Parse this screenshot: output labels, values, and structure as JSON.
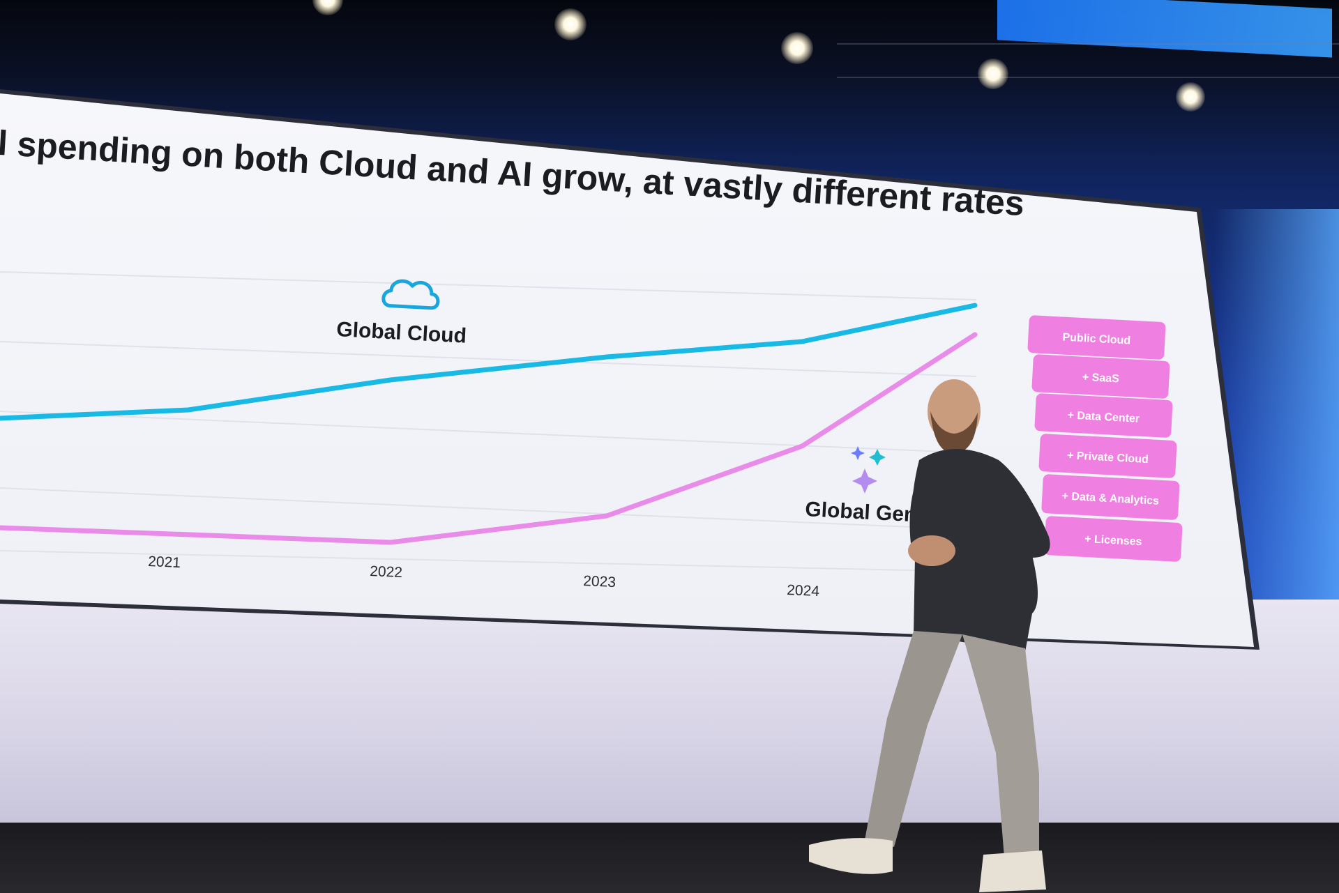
{
  "slide": {
    "title": "l spending on both Cloud and AI grow, at vastly different rates",
    "cloud_label": "Global Cloud",
    "genai_label": "Global Gen",
    "years": [
      "2021",
      "2022",
      "2023",
      "2024"
    ],
    "boxes": [
      "Public Cloud",
      "+ SaaS",
      "+ Data Center",
      "+ Private Cloud",
      "+ Data & Analytics",
      "+ Licenses"
    ]
  },
  "colors": {
    "cloud_line": "#19b9e6",
    "genai_line": "#e98be8",
    "box_fill": "#ef7fe0",
    "box_text": "#ffffff",
    "slide_bg": "#f5f6fa",
    "title_text": "#1b1b22"
  },
  "icons": {
    "cloud": "cloud-icon",
    "sparkle": "sparkle-icon"
  }
}
